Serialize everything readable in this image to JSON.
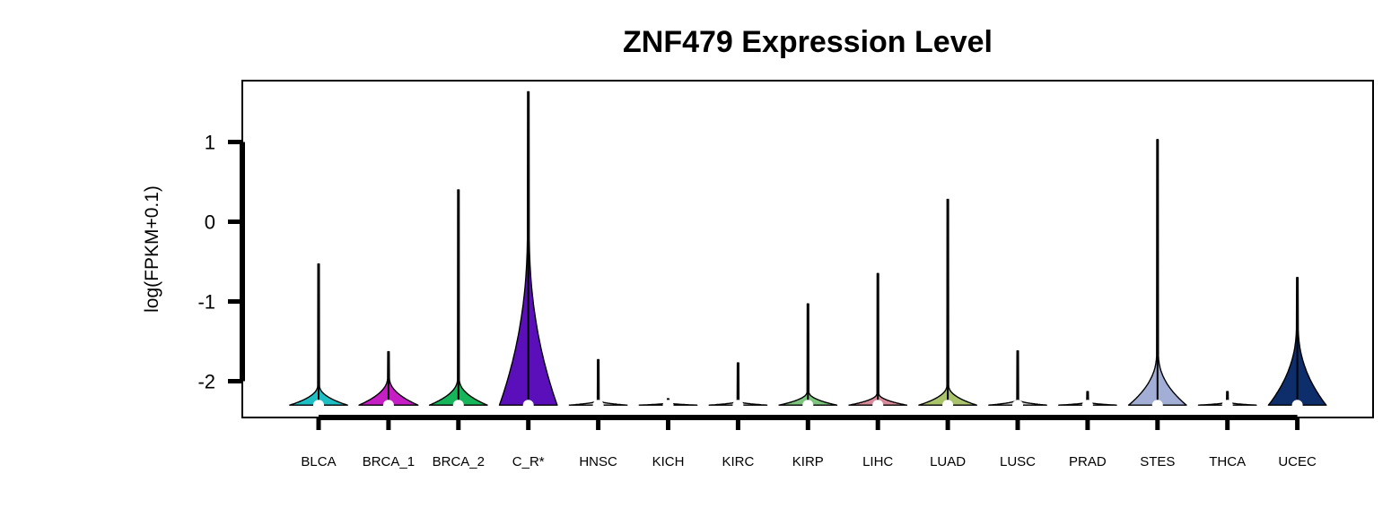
{
  "chart_data": {
    "type": "violin",
    "title": "ZNF479 Expression Level",
    "xlabel": "",
    "ylabel": "log(FPKM+0.1)",
    "ylim": [
      -2.45,
      1.8
    ],
    "yticks": [
      1,
      0,
      -1,
      -2
    ],
    "ytick_labels": [
      "1",
      "0",
      "-1",
      "-2"
    ],
    "grid": false,
    "legend": "none",
    "categories": [
      "BLCA",
      "BRCA_1",
      "BRCA_2",
      "C_R*",
      "HNSC",
      "KICH",
      "KIRC",
      "KIRP",
      "LIHC",
      "LUAD",
      "LUSC",
      "PRAD",
      "STES",
      "THCA",
      "UCEC"
    ],
    "series": [
      {
        "category": "BLCA",
        "color": "#1EBFC4",
        "min": -2.3,
        "max": -0.53,
        "median": -2.3,
        "width": 0.8,
        "shape": 0.25
      },
      {
        "category": "BRCA_1",
        "color": "#C41EC4",
        "min": -2.3,
        "max": -1.63,
        "median": -2.3,
        "width": 0.82,
        "shape": 0.35
      },
      {
        "category": "BRCA_2",
        "color": "#17B559",
        "min": -2.3,
        "max": 0.4,
        "median": -2.3,
        "width": 0.8,
        "shape": 0.33
      },
      {
        "category": "C_R*",
        "color": "#5B0FBA",
        "min": -2.3,
        "max": 1.63,
        "median": -2.3,
        "width": 0.8,
        "shape": 2.2
      },
      {
        "category": "HNSC",
        "color": "#D8D8D8",
        "min": -2.3,
        "max": -1.73,
        "median": -2.3,
        "width": 0.8,
        "shape": 0.06
      },
      {
        "category": "KICH",
        "color": "#D8D8D8",
        "min": -2.3,
        "max": -2.22,
        "median": -2.3,
        "width": 0.8,
        "shape": 0.03
      },
      {
        "category": "KIRC",
        "color": "#D8D8D8",
        "min": -2.3,
        "max": -1.77,
        "median": -2.3,
        "width": 0.8,
        "shape": 0.05
      },
      {
        "category": "KIRP",
        "color": "#7DC47D",
        "min": -2.3,
        "max": -1.03,
        "median": -2.3,
        "width": 0.8,
        "shape": 0.17
      },
      {
        "category": "LIHC",
        "color": "#D98A9A",
        "min": -2.3,
        "max": -0.65,
        "median": -2.3,
        "width": 0.8,
        "shape": 0.15
      },
      {
        "category": "LUAD",
        "color": "#A9C46A",
        "min": -2.3,
        "max": 0.28,
        "median": -2.3,
        "width": 0.8,
        "shape": 0.25
      },
      {
        "category": "LUSC",
        "color": "#D8D8D8",
        "min": -2.3,
        "max": -1.62,
        "median": -2.3,
        "width": 0.8,
        "shape": 0.07
      },
      {
        "category": "PRAD",
        "color": "#D8D8D8",
        "min": -2.3,
        "max": -2.13,
        "median": -2.3,
        "width": 0.8,
        "shape": 0.04
      },
      {
        "category": "STES",
        "color": "#A3AED6",
        "min": -2.3,
        "max": 1.03,
        "median": -2.3,
        "width": 0.8,
        "shape": 0.65
      },
      {
        "category": "THCA",
        "color": "#D8D8D8",
        "min": -2.3,
        "max": -2.13,
        "median": -2.3,
        "width": 0.8,
        "shape": 0.04
      },
      {
        "category": "UCEC",
        "color": "#0E2D6B",
        "min": -2.3,
        "max": -0.7,
        "median": -2.3,
        "width": 0.8,
        "shape": 1.0
      }
    ]
  }
}
